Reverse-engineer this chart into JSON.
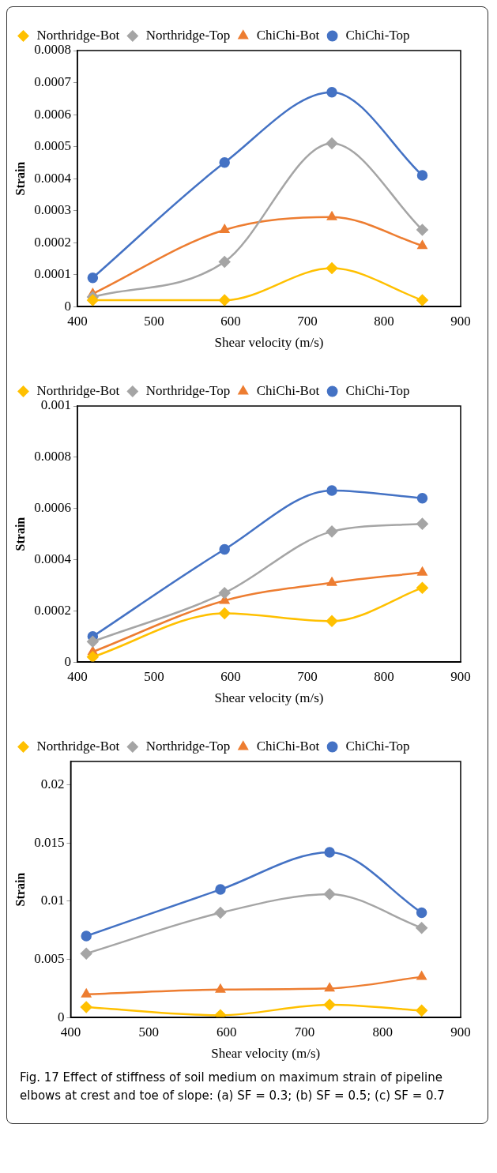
{
  "chart_data": [
    {
      "type": "line",
      "xlabel": "Shear velocity (m/s)",
      "ylabel": "Strain",
      "x": [
        420,
        592,
        732,
        850
      ],
      "xlim": [
        400,
        900
      ],
      "xticks": [
        400,
        500,
        600,
        700,
        800,
        900
      ],
      "ylim": [
        0,
        0.0008
      ],
      "yticks": [
        0,
        0.0001,
        0.0002,
        0.0003,
        0.0004,
        0.0005,
        0.0006,
        0.0007,
        0.0008
      ],
      "grid": false,
      "legend": "top left",
      "series": [
        {
          "name": "ChiChi-Top",
          "color": "#4472c4",
          "marker": "circle",
          "values": [
            9e-05,
            0.00045,
            0.00067,
            0.00041
          ]
        },
        {
          "name": "ChiChi-Bot",
          "color": "#ed7d31",
          "marker": "triangle",
          "values": [
            4e-05,
            0.00024,
            0.00028,
            0.00019
          ]
        },
        {
          "name": "Northridge-Top",
          "color": "#a5a5a5",
          "marker": "diamond",
          "values": [
            3e-05,
            0.00014,
            0.00051,
            0.00024
          ]
        },
        {
          "name": "Northridge-Bot",
          "color": "#ffc000",
          "marker": "diamond",
          "values": [
            2e-05,
            2e-05,
            0.00012,
            2e-05
          ]
        }
      ]
    },
    {
      "type": "line",
      "xlabel": "Shear velocity (m/s)",
      "ylabel": "Strain",
      "x": [
        420,
        592,
        732,
        850
      ],
      "xlim": [
        400,
        900
      ],
      "xticks": [
        400,
        500,
        600,
        700,
        800,
        900
      ],
      "ylim": [
        0,
        0.001
      ],
      "yticks": [
        0,
        0.0002,
        0.0004,
        0.0006,
        0.0008,
        0.001
      ],
      "grid": false,
      "legend": "top left",
      "series": [
        {
          "name": "ChiChi-Top",
          "color": "#4472c4",
          "marker": "circle",
          "values": [
            0.0001,
            0.00044,
            0.00067,
            0.00064
          ]
        },
        {
          "name": "ChiChi-Bot",
          "color": "#ed7d31",
          "marker": "triangle",
          "values": [
            4e-05,
            0.00024,
            0.00031,
            0.00035
          ]
        },
        {
          "name": "Northridge-Top",
          "color": "#a5a5a5",
          "marker": "diamond",
          "values": [
            8e-05,
            0.00027,
            0.00051,
            0.00054
          ]
        },
        {
          "name": "Northridge-Bot",
          "color": "#ffc000",
          "marker": "diamond",
          "values": [
            2e-05,
            0.00019,
            0.00016,
            0.00029
          ]
        }
      ]
    },
    {
      "type": "line",
      "xlabel": "Shear velocity (m/s)",
      "ylabel": "Strain",
      "x": [
        420,
        592,
        732,
        850
      ],
      "xlim": [
        400,
        900
      ],
      "xticks": [
        400,
        500,
        600,
        700,
        800,
        900
      ],
      "ylim": [
        0,
        0.022
      ],
      "yticks": [
        0,
        0.005,
        0.01,
        0.015,
        0.02
      ],
      "grid": false,
      "legend": "top left",
      "series": [
        {
          "name": "ChiChi-Top",
          "color": "#4472c4",
          "marker": "circle",
          "values": [
            0.007,
            0.011,
            0.0142,
            0.009
          ]
        },
        {
          "name": "ChiChi-Bot",
          "color": "#ed7d31",
          "marker": "triangle",
          "values": [
            0.002,
            0.0024,
            0.0025,
            0.0035
          ]
        },
        {
          "name": "Northridge-Top",
          "color": "#a5a5a5",
          "marker": "diamond",
          "values": [
            0.0055,
            0.009,
            0.0106,
            0.0077
          ]
        },
        {
          "name": "Northridge-Bot",
          "color": "#ffc000",
          "marker": "diamond",
          "values": [
            0.0009,
            0.0002,
            0.0011,
            0.0006
          ]
        }
      ],
      "annotations": [
        "Fig. 17 Effect of stiffness of soil medium on maximum strain of pipeline elbows at crest and toe of slope: (a) SF = 0.3; (b) SF = 0.5; (c) SF = 0.7"
      ]
    }
  ]
}
